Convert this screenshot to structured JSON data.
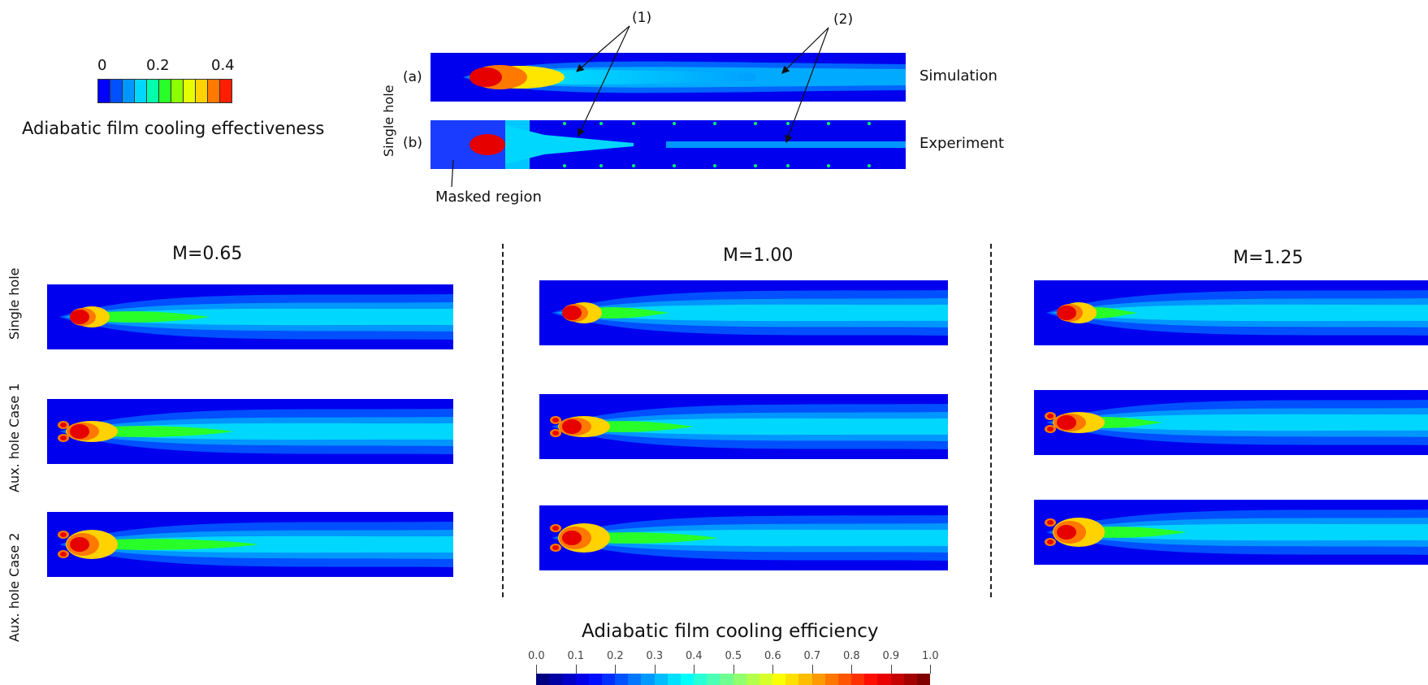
{
  "top_legend": {
    "ticks": [
      "0",
      "0.2",
      "0.4"
    ],
    "title": "Adiabatic film cooling effectiveness",
    "colors": [
      "#0000ff",
      "#0050ff",
      "#0096ff",
      "#00d7ff",
      "#00ffaa",
      "#28ff28",
      "#8cff00",
      "#e6ff00",
      "#ffd200",
      "#ff7800",
      "#ff1e00"
    ]
  },
  "comparison": {
    "row_label": "Single hole",
    "row_a": "(a)",
    "row_b": "(b)",
    "label_sim": "Simulation",
    "label_exp": "Experiment",
    "callout_1": "(1)",
    "callout_2": "(2)",
    "masked": "Masked region"
  },
  "columns": [
    {
      "title": "M=0.65"
    },
    {
      "title": "M=1.00"
    },
    {
      "title": "M=1.25"
    }
  ],
  "row_labels": [
    "Single hole",
    "Aux. hole Case 1",
    "Aux. hole Case 2"
  ],
  "bottom_legend": {
    "title": "Adiabatic film cooling efficiency",
    "ticks": [
      "0.0",
      "0.1",
      "0.2",
      "0.3",
      "0.4",
      "0.5",
      "0.6",
      "0.7",
      "0.8",
      "0.9",
      "1.0"
    ]
  }
}
